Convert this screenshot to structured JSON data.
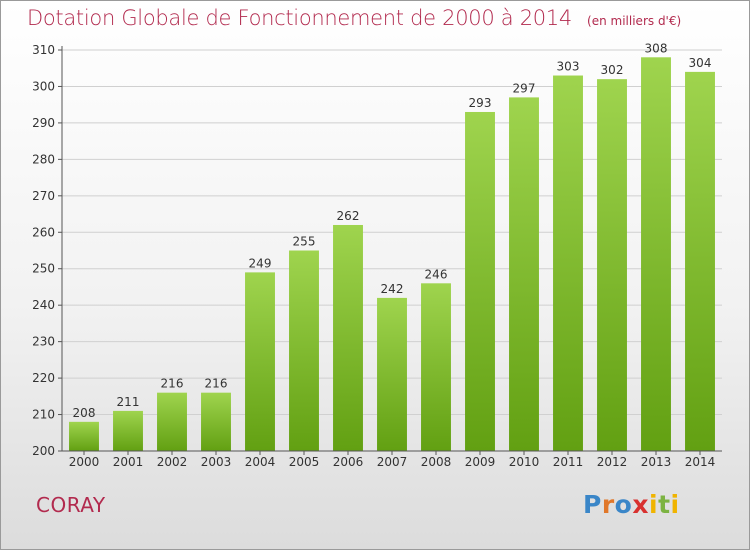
{
  "chart_data": {
    "type": "bar",
    "title": "Dotation Globale de Fonctionnement de 2000 à 2014",
    "subtitle": "(en milliers d'€)",
    "categories": [
      "2000",
      "2001",
      "2002",
      "2003",
      "2004",
      "2005",
      "2006",
      "2007",
      "2008",
      "2009",
      "2010",
      "2011",
      "2012",
      "2013",
      "2014"
    ],
    "values": [
      208,
      211,
      216,
      216,
      249,
      255,
      262,
      242,
      246,
      293,
      297,
      303,
      302,
      308,
      304
    ],
    "ylim": [
      200,
      310
    ],
    "yticks": [
      200,
      210,
      220,
      230,
      240,
      250,
      260,
      270,
      280,
      290,
      300,
      310
    ],
    "grid": true,
    "bar_color_top": "#9fd44e",
    "bar_color_bottom": "#62a012",
    "grid_color": "#d0d0d0"
  },
  "commune": "CORAY",
  "logo": {
    "text": "Proxiti",
    "colors": [
      "#3a86c8",
      "#e0772a",
      "#7cb342",
      "#d8312f",
      "#f0b400"
    ]
  }
}
